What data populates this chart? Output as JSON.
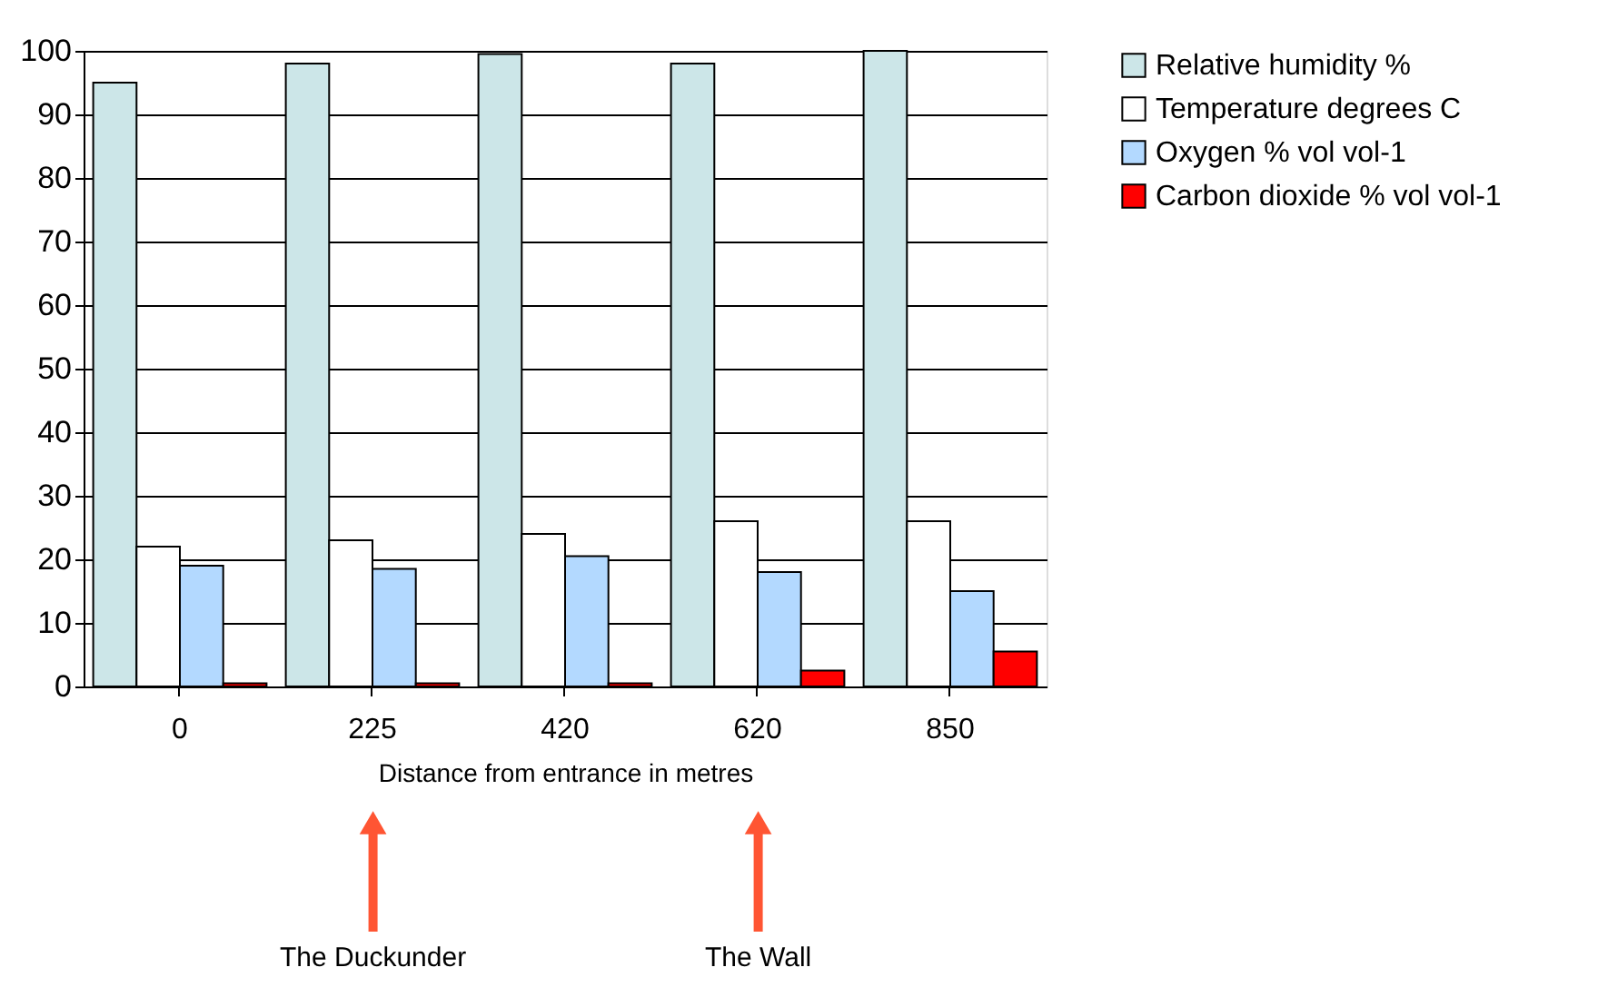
{
  "chart_data": {
    "type": "bar",
    "xlabel": "Distance from entrance in metres",
    "categories": [
      "0",
      "225",
      "420",
      "620",
      "850"
    ],
    "series": [
      {
        "name": "Relative humidity %",
        "color": "#cce6e8",
        "values": [
          95,
          98,
          99.5,
          98,
          100
        ]
      },
      {
        "name": "Temperature degrees C",
        "color": "#ffffff",
        "values": [
          22,
          23,
          24,
          26,
          26
        ]
      },
      {
        "name": "Oxygen % vol vol-1",
        "color": "#b3d9ff",
        "values": [
          19,
          18.5,
          20.5,
          18,
          15
        ]
      },
      {
        "name": "Carbon dioxide % vol vol-1",
        "color": "#ff0000",
        "values": [
          0.5,
          0.5,
          0.5,
          2.5,
          5.5
        ]
      }
    ],
    "ylim": [
      0,
      100
    ],
    "yticks": [
      0,
      10,
      20,
      30,
      40,
      50,
      60,
      70,
      80,
      90,
      100
    ],
    "grid": "y",
    "legend": "right",
    "annotations": [
      "The Duckunder",
      "The Wall"
    ]
  }
}
